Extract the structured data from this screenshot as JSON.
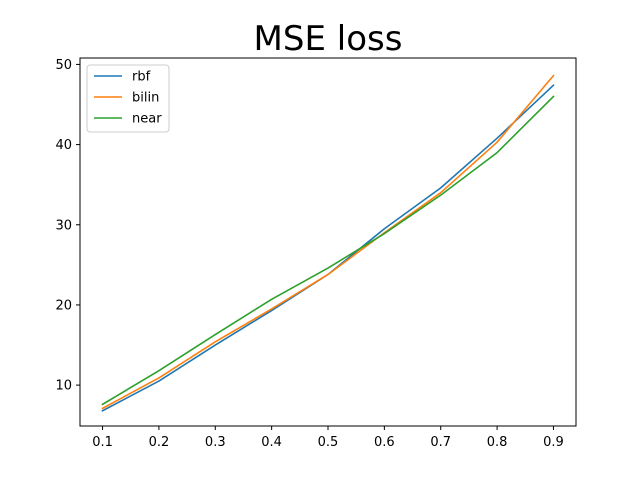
{
  "chart_data": {
    "type": "line",
    "title": "MSE loss",
    "xlabel": "",
    "ylabel": "",
    "x": [
      0.1,
      0.2,
      0.3,
      0.4,
      0.5,
      0.6,
      0.7,
      0.8,
      0.9
    ],
    "xticks": [
      "0.1",
      "0.2",
      "0.3",
      "0.4",
      "0.5",
      "0.6",
      "0.7",
      "0.8",
      "0.9"
    ],
    "yticks": [
      "10",
      "20",
      "30",
      "40",
      "50"
    ],
    "xlim": [
      0.06,
      0.94
    ],
    "ylim": [
      4.9,
      50.8
    ],
    "grid": false,
    "legend_position": "top-left",
    "series": [
      {
        "name": "rbf",
        "color": "#1f77b4",
        "values": [
          6.8,
          10.5,
          15.0,
          19.3,
          23.8,
          29.5,
          34.6,
          40.8,
          47.4
        ]
      },
      {
        "name": "bilin",
        "color": "#ff7f0e",
        "values": [
          7.1,
          10.9,
          15.4,
          19.5,
          23.8,
          29.0,
          34.0,
          40.3,
          48.6
        ]
      },
      {
        "name": "near",
        "color": "#2ca02c",
        "values": [
          7.6,
          11.8,
          16.3,
          20.7,
          24.6,
          28.9,
          33.7,
          39.0,
          46.0
        ]
      }
    ]
  }
}
